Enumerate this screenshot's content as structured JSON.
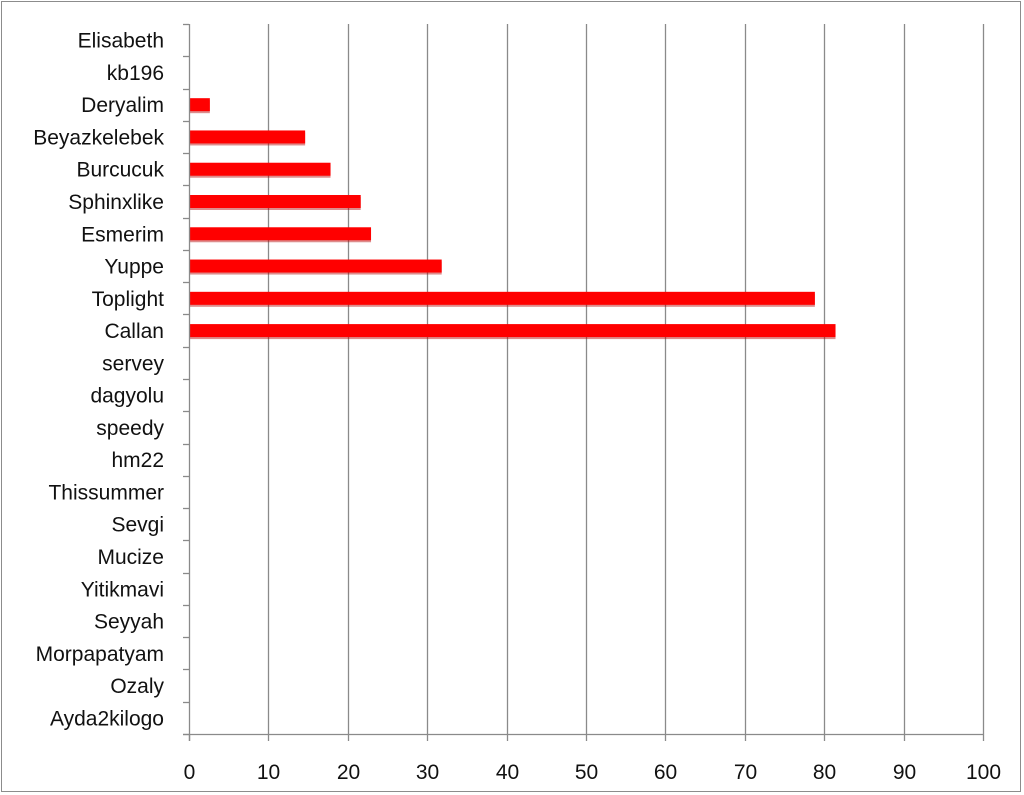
{
  "chart_data": {
    "type": "bar",
    "orientation": "horizontal",
    "categories": [
      "Elisabeth",
      "kb196",
      "Deryalim",
      "Beyazkelebek",
      "Burcucuk",
      "Sphinxlike",
      "Esmerim",
      "Yuppe",
      "Toplight",
      "Callan",
      "servey",
      "dagyolu",
      "speedy",
      "hm22",
      "Thissummer",
      "Sevgi",
      "Mucize",
      "Yitikmavi",
      "Seyyah",
      "Morpapatyam",
      "Ozaly",
      "Ayda2kilogo"
    ],
    "values": [
      0,
      0,
      2.5,
      14.5,
      17.7,
      21.5,
      22.8,
      31.7,
      78.7,
      81.3,
      0,
      0,
      0,
      0,
      0,
      0,
      0,
      0,
      0,
      0,
      0,
      0
    ],
    "xlim": [
      0,
      100
    ],
    "xticks": [
      "0",
      "10",
      "20",
      "30",
      "40",
      "50",
      "60",
      "70",
      "80",
      "90",
      "100"
    ],
    "grid": "vertical",
    "bar_color": "#ff0000",
    "title": "",
    "xlabel": "",
    "ylabel": ""
  }
}
